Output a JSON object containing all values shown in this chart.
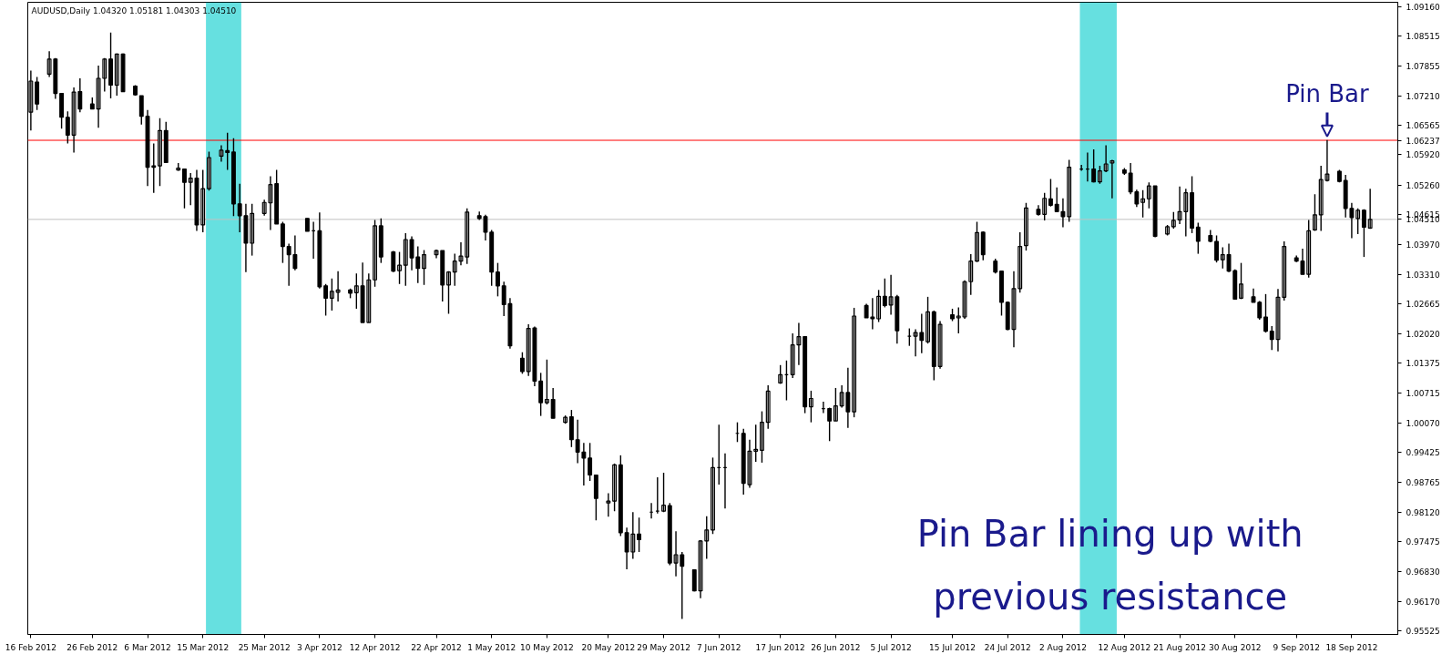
{
  "chart_data": {
    "type": "candlestick",
    "title": "AUDUSD,Daily  1.04320 1.05181 1.04303 1.04510",
    "x": [
      "2012-02-16",
      "2012-02-17",
      "2012-02-19",
      "2012-02-20",
      "2012-02-21",
      "2012-02-22",
      "2012-02-23",
      "2012-02-24",
      "2012-02-26",
      "2012-02-27",
      "2012-02-28",
      "2012-02-29",
      "2012-03-01",
      "2012-03-02",
      "2012-03-04",
      "2012-03-05",
      "2012-03-06",
      "2012-03-07",
      "2012-03-08",
      "2012-03-09",
      "2012-03-11",
      "2012-03-12",
      "2012-03-13",
      "2012-03-14",
      "2012-03-15",
      "2012-03-16",
      "2012-03-18",
      "2012-03-19",
      "2012-03-20",
      "2012-03-21",
      "2012-03-22",
      "2012-03-23",
      "2012-03-25",
      "2012-03-26",
      "2012-03-27",
      "2012-03-28",
      "2012-03-29",
      "2012-03-30",
      "2012-04-01",
      "2012-04-02",
      "2012-04-03",
      "2012-04-04",
      "2012-04-05",
      "2012-04-06",
      "2012-04-08",
      "2012-04-09",
      "2012-04-10",
      "2012-04-11",
      "2012-04-12",
      "2012-04-13",
      "2012-04-15",
      "2012-04-16",
      "2012-04-17",
      "2012-04-18",
      "2012-04-19",
      "2012-04-20",
      "2012-04-22",
      "2012-04-23",
      "2012-04-24",
      "2012-04-25",
      "2012-04-26",
      "2012-04-27",
      "2012-04-29",
      "2012-04-30",
      "2012-05-01",
      "2012-05-02",
      "2012-05-03",
      "2012-05-04",
      "2012-05-06",
      "2012-05-07",
      "2012-05-08",
      "2012-05-09",
      "2012-05-10",
      "2012-05-11",
      "2012-05-13",
      "2012-05-14",
      "2012-05-15",
      "2012-05-16",
      "2012-05-17",
      "2012-05-18",
      "2012-05-20",
      "2012-05-21",
      "2012-05-22",
      "2012-05-23",
      "2012-05-24",
      "2012-05-25",
      "2012-05-27",
      "2012-05-28",
      "2012-05-29",
      "2012-05-30",
      "2012-05-31",
      "2012-06-01",
      "2012-06-03",
      "2012-06-04",
      "2012-06-05",
      "2012-06-06",
      "2012-06-07",
      "2012-06-08",
      "2012-06-10",
      "2012-06-11",
      "2012-06-12",
      "2012-06-13",
      "2012-06-14",
      "2012-06-15",
      "2012-06-17",
      "2012-06-18",
      "2012-06-19",
      "2012-06-20",
      "2012-06-21",
      "2012-06-22",
      "2012-06-24",
      "2012-06-25",
      "2012-06-26",
      "2012-06-27",
      "2012-06-28",
      "2012-06-29",
      "2012-07-01",
      "2012-07-02",
      "2012-07-03",
      "2012-07-04",
      "2012-07-05",
      "2012-07-06",
      "2012-07-08",
      "2012-07-09",
      "2012-07-10",
      "2012-07-11",
      "2012-07-12",
      "2012-07-13",
      "2012-07-15",
      "2012-07-16",
      "2012-07-17",
      "2012-07-18",
      "2012-07-19",
      "2012-07-20",
      "2012-07-22",
      "2012-07-23",
      "2012-07-24",
      "2012-07-25",
      "2012-07-26",
      "2012-07-27",
      "2012-07-29",
      "2012-07-30",
      "2012-07-31",
      "2012-08-01",
      "2012-08-02",
      "2012-08-03",
      "2012-08-05",
      "2012-08-06",
      "2012-08-07",
      "2012-08-08",
      "2012-08-09",
      "2012-08-10",
      "2012-08-12",
      "2012-08-13",
      "2012-08-14",
      "2012-08-15",
      "2012-08-16",
      "2012-08-17",
      "2012-08-19",
      "2012-08-20",
      "2012-08-21",
      "2012-08-22",
      "2012-08-23",
      "2012-08-24",
      "2012-08-26",
      "2012-08-27",
      "2012-08-28",
      "2012-08-29",
      "2012-08-30",
      "2012-08-31",
      "2012-09-02",
      "2012-09-03",
      "2012-09-04",
      "2012-09-05",
      "2012-09-06",
      "2012-09-07",
      "2012-09-09",
      "2012-09-10",
      "2012-09-11",
      "2012-09-12",
      "2012-09-13",
      "2012-09-14",
      "2012-09-16",
      "2012-09-17",
      "2012-09-18",
      "2012-09-19",
      "2012-09-20",
      "2012-09-21"
    ],
    "ohlc": [
      [
        1.0685,
        1.0776,
        1.0645,
        1.0753
      ],
      [
        1.0751,
        1.0762,
        1.069,
        1.0703
      ],
      [
        1.0768,
        1.0818,
        1.0762,
        1.0801
      ],
      [
        1.0801,
        1.0803,
        1.0714,
        1.0726
      ],
      [
        1.0726,
        1.0726,
        1.0649,
        1.0674
      ],
      [
        1.0674,
        1.0687,
        1.0617,
        1.0635
      ],
      [
        1.0635,
        1.0739,
        1.0597,
        1.0729
      ],
      [
        1.073,
        1.0759,
        1.0685,
        1.0692
      ],
      [
        1.0703,
        1.0717,
        1.0692,
        1.0692
      ],
      [
        1.0692,
        1.0787,
        1.0651,
        1.0759
      ],
      [
        1.0759,
        1.0803,
        1.073,
        1.0801
      ],
      [
        1.0801,
        1.0859,
        1.0715,
        1.0744
      ],
      [
        1.0744,
        1.0813,
        1.0721,
        1.0812
      ],
      [
        1.0812,
        1.0813,
        1.0729,
        1.073
      ],
      [
        1.0742,
        1.0744,
        1.0721,
        1.0723
      ],
      [
        1.0721,
        1.0721,
        1.0658,
        1.0676
      ],
      [
        1.0676,
        1.069,
        1.0524,
        1.0565
      ],
      [
        1.0568,
        1.0617,
        1.0509,
        1.0565
      ],
      [
        1.0568,
        1.0672,
        1.0524,
        1.0645
      ],
      [
        1.0645,
        1.0664,
        1.0574,
        1.0575
      ],
      [
        1.0559,
        1.0574,
        1.0557,
        1.0563
      ],
      [
        1.0561,
        1.0561,
        1.0475,
        1.0532
      ],
      [
        1.0532,
        1.0552,
        1.0482,
        1.0541
      ],
      [
        1.0541,
        1.0559,
        1.0426,
        1.0439
      ],
      [
        1.0439,
        1.0559,
        1.0423,
        1.0518
      ],
      [
        1.0518,
        1.0599,
        1.0514,
        1.0586
      ],
      [
        1.0589,
        1.0613,
        1.0577,
        1.0602
      ],
      [
        1.0601,
        1.064,
        1.0559,
        1.0597
      ],
      [
        1.0598,
        1.0628,
        1.0458,
        1.0485
      ],
      [
        1.0485,
        1.0529,
        1.0423,
        1.0459
      ],
      [
        1.0459,
        1.0485,
        1.0336,
        1.0399
      ],
      [
        1.0399,
        1.0485,
        1.0372,
        1.0464
      ],
      [
        1.0464,
        1.0494,
        1.0459,
        1.0488
      ],
      [
        1.0487,
        1.0545,
        1.0428,
        1.0527
      ],
      [
        1.0529,
        1.0559,
        1.0441,
        1.0441
      ],
      [
        1.0441,
        1.0446,
        1.0356,
        1.0392
      ],
      [
        1.0392,
        1.0398,
        1.0306,
        1.0374
      ],
      [
        1.0374,
        1.0416,
        1.034,
        1.0344
      ],
      [
        1.0453,
        1.0453,
        1.0425,
        1.0425
      ],
      [
        1.0426,
        1.0446,
        1.0365,
        1.0426
      ],
      [
        1.0426,
        1.0466,
        1.03,
        1.0304
      ],
      [
        1.0306,
        1.031,
        1.0241,
        1.0279
      ],
      [
        1.0279,
        1.0322,
        1.0252,
        1.0294
      ],
      [
        1.0292,
        1.0338,
        1.0272,
        1.0297
      ],
      [
        1.0297,
        1.03,
        1.0279,
        1.029
      ],
      [
        1.0291,
        1.0333,
        1.0256,
        1.0306
      ],
      [
        1.0306,
        1.0357,
        1.0226,
        1.0226
      ],
      [
        1.0226,
        1.0333,
        1.0226,
        1.0319
      ],
      [
        1.0319,
        1.045,
        1.0304,
        1.0437
      ],
      [
        1.0437,
        1.0453,
        1.0356,
        1.0369
      ],
      [
        1.038,
        1.0382,
        1.0336,
        1.0338
      ],
      [
        1.0339,
        1.038,
        1.031,
        1.0351
      ],
      [
        1.0351,
        1.0421,
        1.0306,
        1.0407
      ],
      [
        1.0407,
        1.0414,
        1.034,
        1.0367
      ],
      [
        1.0369,
        1.0392,
        1.0312,
        1.0344
      ],
      [
        1.0344,
        1.0384,
        1.0308,
        1.0374
      ],
      [
        1.0374,
        1.0385,
        1.0366,
        1.0383
      ],
      [
        1.0383,
        1.0383,
        1.0272,
        1.0308
      ],
      [
        1.0308,
        1.0338,
        1.0245,
        1.0336
      ],
      [
        1.0336,
        1.0376,
        1.0306,
        1.036
      ],
      [
        1.036,
        1.0401,
        1.0351,
        1.0371
      ],
      [
        1.0369,
        1.0475,
        1.0354,
        1.0467
      ],
      [
        1.0459,
        1.0468,
        1.045,
        1.0453
      ],
      [
        1.0457,
        1.0461,
        1.0405,
        1.0423
      ],
      [
        1.0423,
        1.0428,
        1.0306,
        1.0336
      ],
      [
        1.0336,
        1.0356,
        1.0283,
        1.0306
      ],
      [
        1.0306,
        1.0315,
        1.024,
        1.0265
      ],
      [
        1.0267,
        1.0279,
        1.0169,
        1.0175
      ],
      [
        1.0148,
        1.0161,
        1.0114,
        1.0119
      ],
      [
        1.0119,
        1.0222,
        1.0109,
        1.0213
      ],
      [
        1.0214,
        1.0217,
        1.0087,
        1.0098
      ],
      [
        1.0098,
        1.0116,
        1.0022,
        1.0051
      ],
      [
        1.0051,
        1.0145,
        1.0047,
        1.0058
      ],
      [
        1.0058,
        1.0083,
        1.0017,
        1.0017
      ],
      [
        1.0008,
        1.0023,
        1.0005,
        1.0019
      ],
      [
        1.002,
        1.0035,
        0.9954,
        0.997
      ],
      [
        0.997,
        1.0014,
        0.9919,
        0.9943
      ],
      [
        0.9943,
        0.9963,
        0.987,
        0.993
      ],
      [
        0.993,
        0.9963,
        0.988,
        0.9893
      ],
      [
        0.9893,
        0.9894,
        0.9794,
        0.9842
      ],
      [
        0.9832,
        0.9853,
        0.9802,
        0.9836
      ],
      [
        0.9836,
        0.9918,
        0.9814,
        0.9915
      ],
      [
        0.9915,
        0.9936,
        0.976,
        0.9767
      ],
      [
        0.9767,
        0.9778,
        0.9687,
        0.9725
      ],
      [
        0.9725,
        0.9812,
        0.971,
        0.9764
      ],
      [
        0.9764,
        0.98,
        0.9725,
        0.9752
      ],
      [
        0.9812,
        0.9832,
        0.9798,
        0.9812
      ],
      [
        0.9814,
        0.9888,
        0.9809,
        0.9814
      ],
      [
        0.9814,
        0.9898,
        0.9812,
        0.9827
      ],
      [
        0.9826,
        0.9832,
        0.9696,
        0.9701
      ],
      [
        0.9701,
        0.977,
        0.9672,
        0.9719
      ],
      [
        0.9719,
        0.9725,
        0.9579,
        0.9694
      ],
      [
        0.9686,
        0.9687,
        0.9639,
        0.964
      ],
      [
        0.964,
        0.9751,
        0.9624,
        0.9749
      ],
      [
        0.9749,
        0.9803,
        0.971,
        0.9773
      ],
      [
        0.9773,
        0.9931,
        0.9764,
        0.9909
      ],
      [
        0.9909,
        1.0003,
        0.9872,
        0.9909
      ],
      [
        0.9909,
        0.994,
        0.982,
        0.9909
      ],
      [
        0.9984,
        1.0008,
        0.9965,
        0.9984
      ],
      [
        0.9984,
        0.9994,
        0.985,
        0.9875
      ],
      [
        0.9872,
        0.997,
        0.9865,
        0.9945
      ],
      [
        0.9945,
        1.0003,
        0.9922,
        0.9949
      ],
      [
        0.9947,
        1.0032,
        0.992,
        1.0008
      ],
      [
        1.0008,
        1.0089,
        0.9994,
        1.0076
      ],
      [
        1.0094,
        1.0133,
        1.0092,
        1.0112
      ],
      [
        1.0112,
        1.0143,
        1.0056,
        1.0112
      ],
      [
        1.0112,
        1.0202,
        1.0105,
        1.0177
      ],
      [
        1.0177,
        1.0225,
        1.0133,
        1.0195
      ],
      [
        1.0195,
        1.0195,
        1.0028,
        1.0042
      ],
      [
        1.0042,
        1.0077,
        1.0008,
        1.006
      ],
      [
        1.0038,
        1.0053,
        1.0028,
        1.0038
      ],
      [
        1.0038,
        1.004,
        0.9967,
        1.0011
      ],
      [
        1.0011,
        1.0083,
        1.0011,
        1.0044
      ],
      [
        1.0044,
        1.0089,
        1.004,
        1.0073
      ],
      [
        1.0073,
        1.0127,
        0.9996,
        1.0031
      ],
      [
        1.0031,
        1.0258,
        1.0019,
        1.024
      ],
      [
        1.0263,
        1.0267,
        1.0236,
        1.0236
      ],
      [
        1.0238,
        1.0279,
        1.0211,
        1.0234
      ],
      [
        1.0234,
        1.0297,
        1.0227,
        1.0283
      ],
      [
        1.0283,
        1.0322,
        1.0259,
        1.0263
      ],
      [
        1.0264,
        1.033,
        1.0243,
        1.0282
      ],
      [
        1.0282,
        1.0286,
        1.018,
        1.0208
      ],
      [
        1.0196,
        1.0213,
        1.0175,
        1.0196
      ],
      [
        1.0196,
        1.0211,
        1.0152,
        1.0204
      ],
      [
        1.0204,
        1.0245,
        1.0159,
        1.0187
      ],
      [
        1.0184,
        1.0282,
        1.018,
        1.0249
      ],
      [
        1.0249,
        1.0252,
        1.01,
        1.013
      ],
      [
        1.013,
        1.0229,
        1.0125,
        1.0222
      ],
      [
        1.0243,
        1.0256,
        1.0229,
        1.0234
      ],
      [
        1.0236,
        1.0259,
        1.0202,
        1.024
      ],
      [
        1.0238,
        1.0318,
        1.0234,
        1.0315
      ],
      [
        1.0315,
        1.0375,
        1.0286,
        1.036
      ],
      [
        1.036,
        1.0446,
        1.0358,
        1.0422
      ],
      [
        1.0423,
        1.0425,
        1.0362,
        1.0374
      ],
      [
        1.036,
        1.0365,
        1.0333,
        1.0336
      ],
      [
        1.0338,
        1.0338,
        1.0241,
        1.027
      ],
      [
        1.027,
        1.0272,
        1.0209,
        1.0211
      ],
      [
        1.0211,
        1.0338,
        1.0172,
        1.03
      ],
      [
        1.03,
        1.0423,
        1.0291,
        1.0392
      ],
      [
        1.0394,
        1.0487,
        1.0383,
        1.0476
      ],
      [
        1.0473,
        1.0482,
        1.0459,
        1.0462
      ],
      [
        1.0462,
        1.0509,
        1.0449,
        1.0497
      ],
      [
        1.0496,
        1.0539,
        1.0479,
        1.0482
      ],
      [
        1.0484,
        1.0521,
        1.0467,
        1.0468
      ],
      [
        1.0468,
        1.0497,
        1.0434,
        1.0457
      ],
      [
        1.0457,
        1.0581,
        1.0446,
        1.0565
      ],
      [
        1.0561,
        1.057,
        1.0557,
        1.0561
      ],
      [
        1.0561,
        1.0597,
        1.0534,
        1.0561
      ],
      [
        1.0561,
        1.0604,
        1.0532,
        1.0533
      ],
      [
        1.0533,
        1.0568,
        1.0529,
        1.0557
      ],
      [
        1.0557,
        1.0613,
        1.0554,
        1.0572
      ],
      [
        1.0574,
        1.0581,
        1.0497,
        1.0579
      ],
      [
        1.0559,
        1.0563,
        1.0548,
        1.0552
      ],
      [
        1.0552,
        1.0574,
        1.0506,
        1.0511
      ],
      [
        1.0511,
        1.0516,
        1.0478,
        1.0485
      ],
      [
        1.0488,
        1.0515,
        1.0455,
        1.0496
      ],
      [
        1.0496,
        1.0532,
        1.0475,
        1.0524
      ],
      [
        1.0524,
        1.0524,
        1.0412,
        1.0414
      ],
      [
        1.0419,
        1.0439,
        1.0416,
        1.0435
      ],
      [
        1.0435,
        1.0467,
        1.0431,
        1.0449
      ],
      [
        1.045,
        1.0523,
        1.0441,
        1.0468
      ],
      [
        1.0468,
        1.0518,
        1.0414,
        1.0509
      ],
      [
        1.0509,
        1.0545,
        1.0421,
        1.0432
      ],
      [
        1.0434,
        1.0444,
        1.0376,
        1.0403
      ],
      [
        1.0416,
        1.0428,
        1.0401,
        1.0403
      ],
      [
        1.0403,
        1.0416,
        1.0357,
        1.0362
      ],
      [
        1.0363,
        1.039,
        1.0344,
        1.0374
      ],
      [
        1.0374,
        1.0398,
        1.0336,
        1.0338
      ],
      [
        1.0339,
        1.0342,
        1.0277,
        1.0277
      ],
      [
        1.0279,
        1.0356,
        1.0277,
        1.031
      ],
      [
        1.0282,
        1.03,
        1.027,
        1.027
      ],
      [
        1.027,
        1.0273,
        1.0232,
        1.0236
      ],
      [
        1.0238,
        1.0288,
        1.0204,
        1.0207
      ],
      [
        1.0207,
        1.0218,
        1.0166,
        1.0189
      ],
      [
        1.0189,
        1.0299,
        1.0163,
        1.0281
      ],
      [
        1.0281,
        1.0403,
        1.0274,
        1.0392
      ],
      [
        1.0367,
        1.0372,
        1.0358,
        1.036
      ],
      [
        1.036,
        1.0387,
        1.0331,
        1.0331
      ],
      [
        1.0331,
        1.045,
        1.0324,
        1.0426
      ],
      [
        1.0428,
        1.0506,
        1.0426,
        1.0461
      ],
      [
        1.0461,
        1.0568,
        1.0426,
        1.0538
      ],
      [
        1.0536,
        1.0624,
        1.0534,
        1.055
      ],
      [
        1.0556,
        1.0559,
        1.0532,
        1.0534
      ],
      [
        1.0536,
        1.0548,
        1.0455,
        1.0475
      ],
      [
        1.0475,
        1.0487,
        1.041,
        1.0455
      ],
      [
        1.0453,
        1.0475,
        1.0419,
        1.0471
      ],
      [
        1.0471,
        1.0473,
        1.0369,
        1.0434
      ],
      [
        1.0432,
        1.05181,
        1.04303,
        1.0451
      ]
    ],
    "xlim": [
      "2012-02-15T12:00",
      "2012-09-25T12:00"
    ],
    "xticks": [
      {
        "value": "2012-02-16",
        "label": "16 Feb 2012"
      },
      {
        "value": "2012-02-26",
        "label": "26 Feb 2012"
      },
      {
        "value": "2012-03-06",
        "label": "6 Mar 2012"
      },
      {
        "value": "2012-03-15",
        "label": "15 Mar 2012"
      },
      {
        "value": "2012-03-25",
        "label": "25 Mar 2012"
      },
      {
        "value": "2012-04-03",
        "label": "3 Apr 2012"
      },
      {
        "value": "2012-04-12",
        "label": "12 Apr 2012"
      },
      {
        "value": "2012-04-22",
        "label": "22 Apr 2012"
      },
      {
        "value": "2012-05-01",
        "label": "1 May 2012"
      },
      {
        "value": "2012-05-10",
        "label": "10 May 2012"
      },
      {
        "value": "2012-05-20",
        "label": "20 May 2012"
      },
      {
        "value": "2012-05-29",
        "label": "29 May 2012"
      },
      {
        "value": "2012-06-07",
        "label": "7 Jun 2012"
      },
      {
        "value": "2012-06-17",
        "label": "17 Jun 2012"
      },
      {
        "value": "2012-06-26",
        "label": "26 Jun 2012"
      },
      {
        "value": "2012-07-05",
        "label": "5 Jul 2012"
      },
      {
        "value": "2012-07-15",
        "label": "15 Jul 2012"
      },
      {
        "value": "2012-07-24",
        "label": "24 Jul 2012"
      },
      {
        "value": "2012-08-02",
        "label": "2 Aug 2012"
      },
      {
        "value": "2012-08-12",
        "label": "12 Aug 2012"
      },
      {
        "value": "2012-08-21",
        "label": "21 Aug 2012"
      },
      {
        "value": "2012-08-30",
        "label": "30 Aug 2012"
      },
      {
        "value": "2012-09-09",
        "label": "9 Sep 2012"
      },
      {
        "value": "2012-09-18",
        "label": "18 Sep 2012"
      }
    ],
    "ylim": [
      0.9545,
      1.0925
    ],
    "yticks": [
      {
        "value": 1.0916,
        "label": "1.09160"
      },
      {
        "value": 1.08515,
        "label": "1.08515"
      },
      {
        "value": 1.07855,
        "label": "1.07855"
      },
      {
        "value": 1.0721,
        "label": "1.07210"
      },
      {
        "value": 1.06565,
        "label": "1.06565"
      },
      {
        "value": 1.0592,
        "label": "1.05920"
      },
      {
        "value": 1.0526,
        "label": "1.05260"
      },
      {
        "value": 1.04615,
        "label": "1.04615"
      },
      {
        "value": 1.0397,
        "label": "1.03970"
      },
      {
        "value": 1.0331,
        "label": "1.03310"
      },
      {
        "value": 1.02665,
        "label": "1.02665"
      },
      {
        "value": 1.0202,
        "label": "1.02020"
      },
      {
        "value": 1.01375,
        "label": "1.01375"
      },
      {
        "value": 1.00715,
        "label": "1.00715"
      },
      {
        "value": 1.0007,
        "label": "1.00070"
      },
      {
        "value": 0.99425,
        "label": "0.99425"
      },
      {
        "value": 0.98765,
        "label": "0.98765"
      },
      {
        "value": 0.9812,
        "label": "0.98120"
      },
      {
        "value": 0.97475,
        "label": "0.97475"
      },
      {
        "value": 0.9683,
        "label": "0.96830"
      },
      {
        "value": 0.9617,
        "label": "0.96170"
      },
      {
        "value": 0.95525,
        "label": "0.95525"
      }
    ],
    "ref_lines": [
      {
        "axis": "y",
        "value": 1.06237,
        "label": "1.06237",
        "color": "#ff0000"
      },
      {
        "axis": "y",
        "value": 1.0451,
        "label": "1.04510",
        "color": "#c0c0c0"
      }
    ],
    "bands": [
      {
        "axis": "x",
        "from": "2012-03-15T12:00",
        "to": "2012-03-21T06:00",
        "color": "#00cccc"
      },
      {
        "axis": "x",
        "from": "2012-08-04T18:00",
        "to": "2012-08-10T18:00",
        "color": "#00cccc"
      }
    ],
    "annotations": [
      {
        "text": "Pin Bar",
        "x": "2012-09-14",
        "y": 1.0624
      },
      "Pin Bar lining up with previous resistance"
    ]
  }
}
